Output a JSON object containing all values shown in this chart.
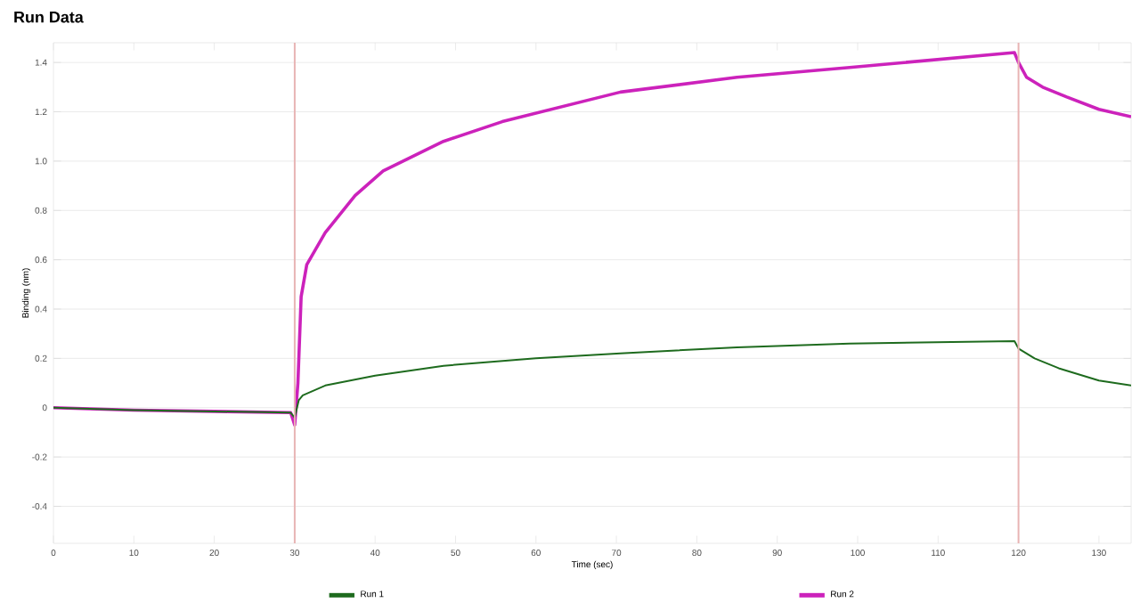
{
  "chart_data": {
    "type": "line",
    "title": "Run Data",
    "xlabel": "Time (sec)",
    "ylabel": "Binding (nm)",
    "xlim": [
      0,
      134
    ],
    "ylim": [
      -0.55,
      1.48
    ],
    "xticks": [
      0,
      10,
      20,
      30,
      40,
      50,
      60,
      70,
      80,
      90,
      100,
      110,
      120,
      130
    ],
    "yticks": [
      {
        "value": -0.4,
        "label": "-0.4"
      },
      {
        "value": -0.2,
        "label": "-0.2"
      },
      {
        "value": 0,
        "label": "0"
      },
      {
        "value": 0.2,
        "label": "0.2"
      },
      {
        "value": 0.4,
        "label": "0.4"
      },
      {
        "value": 0.6,
        "label": "0.6"
      },
      {
        "value": 0.8,
        "label": "0.8"
      },
      {
        "value": 1.0,
        "label": "1.0"
      },
      {
        "value": 1.2,
        "label": "1.2"
      },
      {
        "value": 1.4,
        "label": "1.4"
      }
    ],
    "grid": "y",
    "legend": "bottom",
    "ref_lines": [
      {
        "axis": "x",
        "value": 30,
        "color": "#e8b4b4"
      },
      {
        "axis": "x",
        "value": 120,
        "color": "#e8b4b4"
      }
    ],
    "series": [
      {
        "name": "Run 1",
        "color": "#1e6b1e",
        "x": [
          0,
          10,
          20,
          29.5,
          30,
          30.5,
          31,
          33.8,
          40,
          48.5,
          60,
          70.5,
          85,
          99,
          119.5,
          120,
          122,
          125,
          130,
          134
        ],
        "values": [
          0,
          -0.01,
          -0.015,
          -0.02,
          -0.04,
          0.03,
          0.05,
          0.09,
          0.13,
          0.17,
          0.2,
          0.22,
          0.245,
          0.26,
          0.27,
          0.24,
          0.2,
          0.16,
          0.11,
          0.09
        ]
      },
      {
        "name": "Run 2",
        "color": "#cc22bb",
        "x": [
          0,
          10,
          20,
          29.5,
          30,
          30.4,
          30.8,
          31.5,
          33.8,
          37.5,
          41,
          48.5,
          55.8,
          70.5,
          85,
          99,
          119.5,
          120,
          121,
          123,
          126,
          130,
          134
        ],
        "values": [
          0,
          -0.01,
          -0.015,
          -0.02,
          -0.07,
          0.1,
          0.45,
          0.58,
          0.71,
          0.86,
          0.96,
          1.08,
          1.16,
          1.28,
          1.34,
          1.38,
          1.44,
          1.4,
          1.34,
          1.3,
          1.26,
          1.21,
          1.18
        ]
      }
    ]
  }
}
